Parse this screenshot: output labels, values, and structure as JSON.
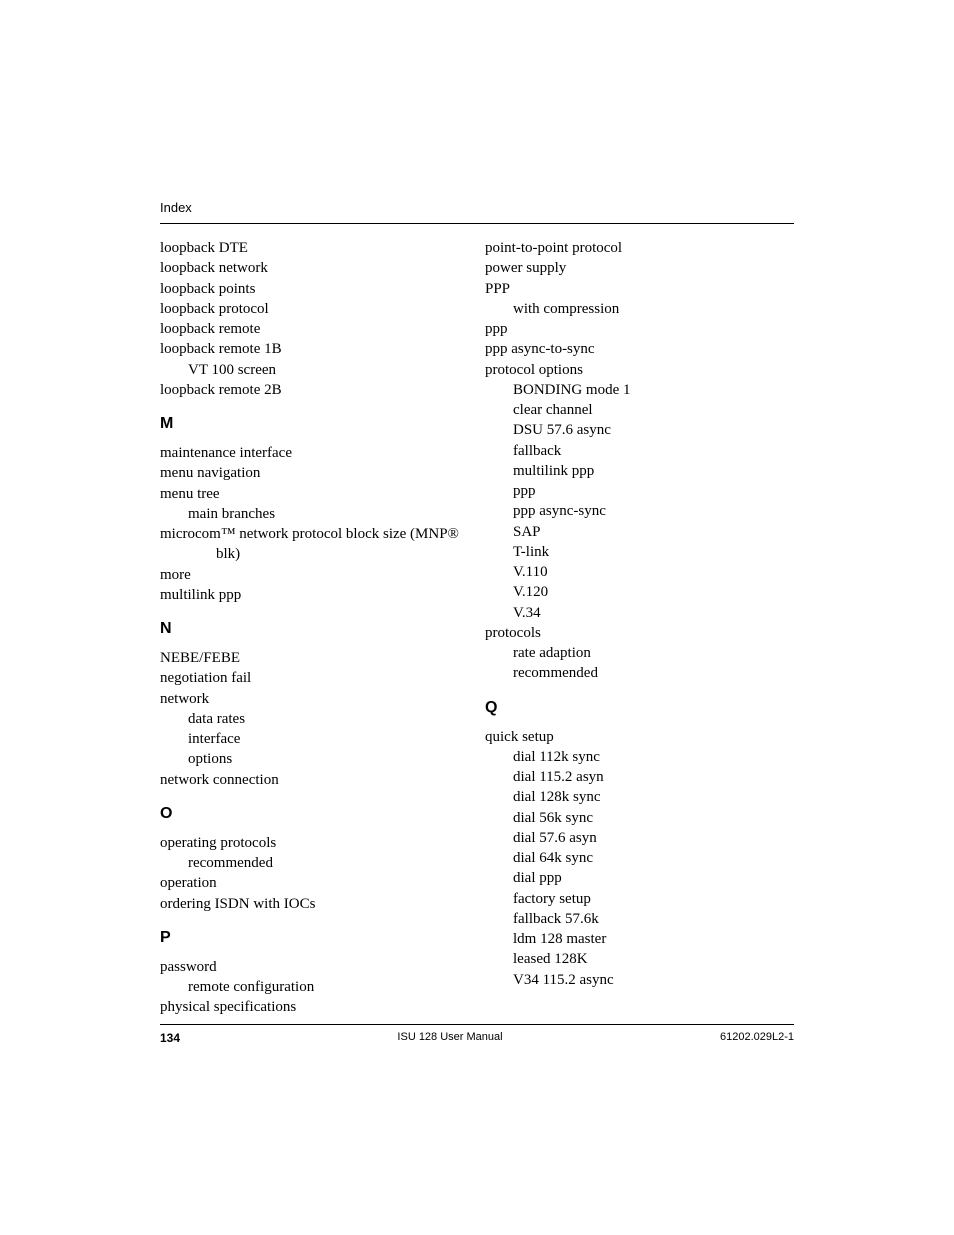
{
  "header": {
    "title": "Index"
  },
  "colLeft": {
    "block1": [
      {
        "text": "loopback DTE",
        "indent": 0
      },
      {
        "text": "loopback network",
        "indent": 0
      },
      {
        "text": "loopback points",
        "indent": 0
      },
      {
        "text": "loopback protocol",
        "indent": 0
      },
      {
        "text": "loopback remote",
        "indent": 0
      },
      {
        "text": "loopback remote 1B",
        "indent": 0
      },
      {
        "text": "VT 100 screen",
        "indent": 1
      },
      {
        "text": "loopback remote 2B",
        "indent": 0
      }
    ],
    "letterM": "M",
    "blockM": [
      {
        "text": "maintenance interface",
        "indent": 0
      },
      {
        "text": "menu navigation",
        "indent": 0
      },
      {
        "text": "menu tree",
        "indent": 0
      },
      {
        "text": "main branches",
        "indent": 1
      },
      {
        "text": "microcom™ network protocol block size (MNP® blk)",
        "indent": 0,
        "hang": true
      },
      {
        "text": "more",
        "indent": 0
      },
      {
        "text": "multilink ppp",
        "indent": 0
      }
    ],
    "letterN": "N",
    "blockN": [
      {
        "text": "NEBE/FEBE",
        "indent": 0
      },
      {
        "text": "negotiation fail",
        "indent": 0
      },
      {
        "text": "network",
        "indent": 0
      },
      {
        "text": "data rates",
        "indent": 1
      },
      {
        "text": "interface",
        "indent": 1
      },
      {
        "text": "options",
        "indent": 1
      },
      {
        "text": "network connection",
        "indent": 0
      }
    ],
    "letterO": "O",
    "blockO": [
      {
        "text": "operating protocols",
        "indent": 0
      },
      {
        "text": "recommended",
        "indent": 1
      },
      {
        "text": "operation",
        "indent": 0
      },
      {
        "text": "ordering ISDN with IOCs",
        "indent": 0
      }
    ],
    "letterP": "P",
    "blockP": [
      {
        "text": "password",
        "indent": 0
      },
      {
        "text": "remote configuration",
        "indent": 1
      },
      {
        "text": "physical specifications",
        "indent": 0
      }
    ]
  },
  "colRight": {
    "blockPcont": [
      {
        "text": "point-to-point protocol",
        "indent": 0
      },
      {
        "text": "power supply",
        "indent": 0
      },
      {
        "text": "PPP",
        "indent": 0
      },
      {
        "text": "with compression",
        "indent": 1
      },
      {
        "text": "ppp",
        "indent": 0
      },
      {
        "text": "ppp async-to-sync",
        "indent": 0
      },
      {
        "text": "protocol options",
        "indent": 0
      },
      {
        "text": "BONDING mode 1",
        "indent": 1
      },
      {
        "text": "clear channel",
        "indent": 1
      },
      {
        "text": "DSU 57.6 async",
        "indent": 1
      },
      {
        "text": "fallback",
        "indent": 1
      },
      {
        "text": "multilink ppp",
        "indent": 1
      },
      {
        "text": "ppp",
        "indent": 1
      },
      {
        "text": "ppp async-sync",
        "indent": 1
      },
      {
        "text": "SAP",
        "indent": 1
      },
      {
        "text": "T-link",
        "indent": 1
      },
      {
        "text": "V.110",
        "indent": 1
      },
      {
        "text": "V.120",
        "indent": 1
      },
      {
        "text": "V.34",
        "indent": 1
      },
      {
        "text": "protocols",
        "indent": 0
      },
      {
        "text": "rate adaption",
        "indent": 1
      },
      {
        "text": "recommended",
        "indent": 1
      }
    ],
    "letterQ": "Q",
    "blockQ": [
      {
        "text": "quick setup",
        "indent": 0
      },
      {
        "text": "dial 112k sync",
        "indent": 1
      },
      {
        "text": "dial 115.2 asyn",
        "indent": 1
      },
      {
        "text": "dial 128k sync",
        "indent": 1
      },
      {
        "text": "dial 56k sync",
        "indent": 1
      },
      {
        "text": "dial 57.6 asyn",
        "indent": 1
      },
      {
        "text": "dial 64k sync",
        "indent": 1
      },
      {
        "text": "dial ppp",
        "indent": 1
      },
      {
        "text": "factory setup",
        "indent": 1
      },
      {
        "text": "fallback 57.6k",
        "indent": 1
      },
      {
        "text": "ldm 128 master",
        "indent": 1
      },
      {
        "text": "leased 128K",
        "indent": 1
      },
      {
        "text": "V34 115.2 async",
        "indent": 1
      }
    ]
  },
  "footer": {
    "pageNum": "134",
    "centerText": "ISU 128 User Manual",
    "rightText": "61202.029L2-1"
  }
}
